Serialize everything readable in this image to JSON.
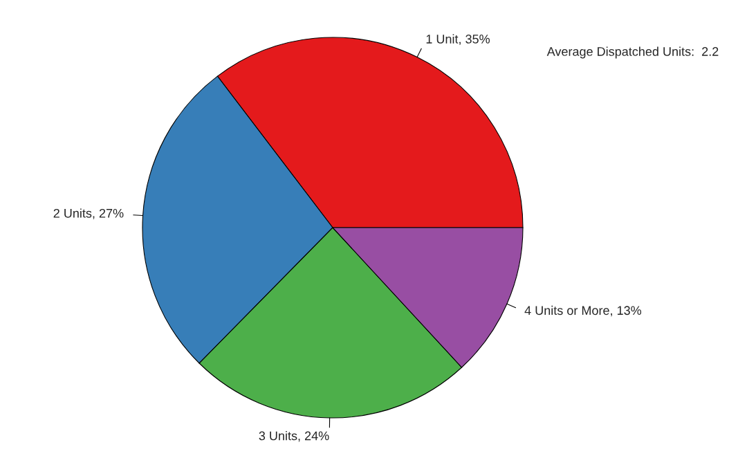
{
  "chart_data": {
    "type": "pie",
    "categories": [
      "1 Unit, 35%",
      "2 Units, 27%",
      "3 Units, 24%",
      "4 Units or More, 13%"
    ],
    "values": [
      35,
      27,
      24,
      13
    ],
    "colors": [
      "#e41a1c",
      "#377eb8",
      "#4daf4a",
      "#984ea3"
    ],
    "annotations": [
      "Average Dispatched Units:  2.2"
    ]
  }
}
